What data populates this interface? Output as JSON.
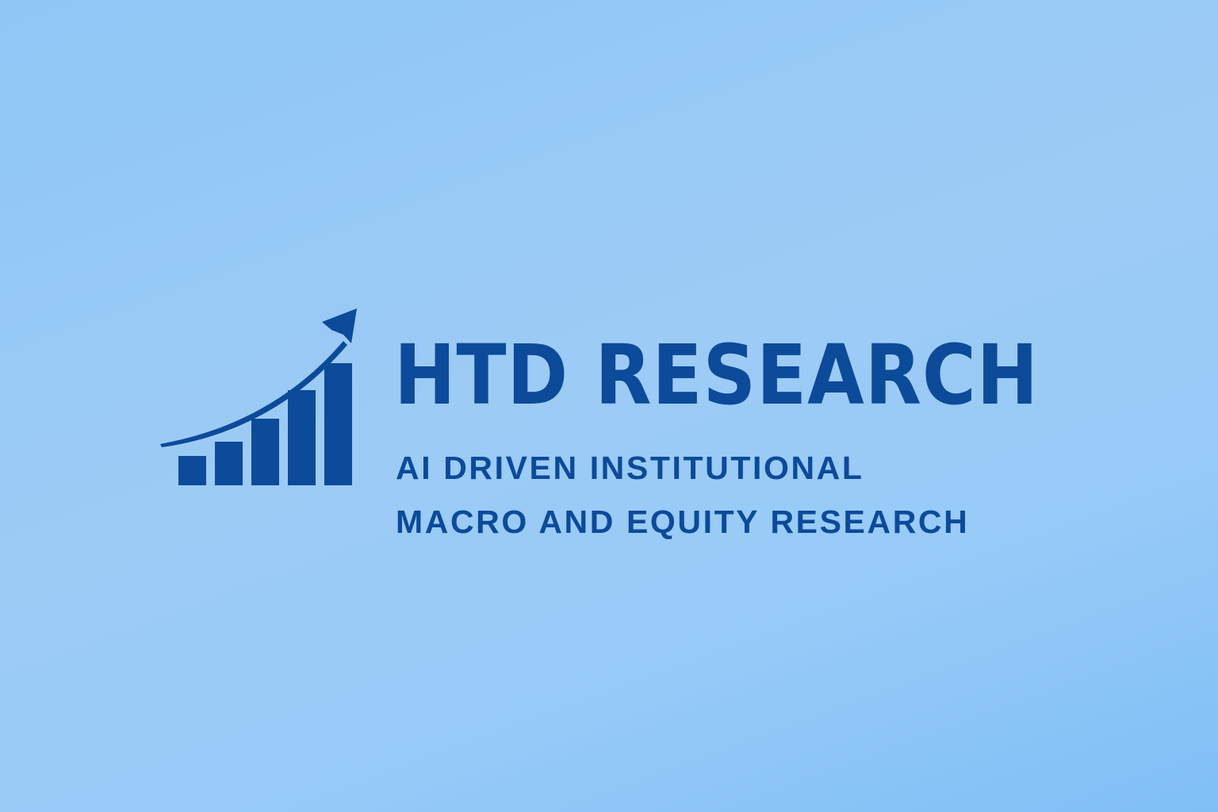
{
  "logo": {
    "brand_name": "HTD RESEARCH",
    "tagline_lines": [
      "AI DRIVEN INSTITUTIONAL",
      "MACRO AND EQUITY RESEARCH"
    ],
    "icon": "bar-chart-growth-arrow-icon"
  },
  "colors": {
    "brand_blue": "#0c4a9a",
    "background_light": "#9ccbf5",
    "background_dark": "#7fbff5"
  }
}
